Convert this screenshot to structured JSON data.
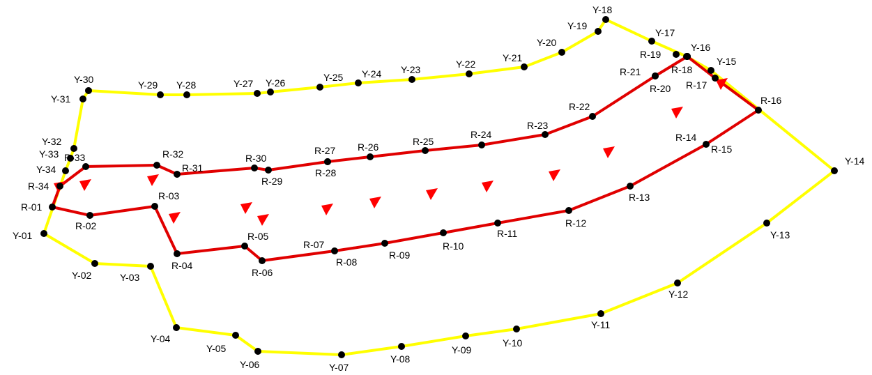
{
  "colors": {
    "outer_route": "#ffff00",
    "inner_route": "#e00000",
    "point": "#000000",
    "arrow": "#ff0000",
    "label": "#000000",
    "background": "#ffffff"
  },
  "yellow_route": {
    "points": [
      {
        "id": "Y-01",
        "label": "Y-01"
      },
      {
        "id": "Y-02",
        "label": "Y-02"
      },
      {
        "id": "Y-03",
        "label": "Y-03"
      },
      {
        "id": "Y-04",
        "label": "Y-04"
      },
      {
        "id": "Y-05",
        "label": "Y-05"
      },
      {
        "id": "Y-06",
        "label": "Y-06"
      },
      {
        "id": "Y-07",
        "label": "Y-07"
      },
      {
        "id": "Y-08",
        "label": "Y-08"
      },
      {
        "id": "Y-09",
        "label": "Y-09"
      },
      {
        "id": "Y-10",
        "label": "Y-10"
      },
      {
        "id": "Y-11",
        "label": "Y-11"
      },
      {
        "id": "Y-12",
        "label": "Y-12"
      },
      {
        "id": "Y-13",
        "label": "Y-13"
      },
      {
        "id": "Y-14",
        "label": "Y-14"
      },
      {
        "id": "Y-15",
        "label": "Y-15"
      },
      {
        "id": "Y-16",
        "label": "Y-16"
      },
      {
        "id": "Y-17",
        "label": "Y-17"
      },
      {
        "id": "Y-18",
        "label": "Y-18"
      },
      {
        "id": "Y-19",
        "label": "Y-19"
      },
      {
        "id": "Y-20",
        "label": "Y-20"
      },
      {
        "id": "Y-21",
        "label": "Y-21"
      },
      {
        "id": "Y-22",
        "label": "Y-22"
      },
      {
        "id": "Y-23",
        "label": "Y-23"
      },
      {
        "id": "Y-24",
        "label": "Y-24"
      },
      {
        "id": "Y-25",
        "label": "Y-25"
      },
      {
        "id": "Y-26",
        "label": "Y-26"
      },
      {
        "id": "Y-27",
        "label": "Y-27"
      },
      {
        "id": "Y-28",
        "label": "Y-28"
      },
      {
        "id": "Y-29",
        "label": "Y-29"
      },
      {
        "id": "Y-30",
        "label": "Y-30"
      },
      {
        "id": "Y-31",
        "label": "Y-31"
      },
      {
        "id": "Y-32",
        "label": "Y-32"
      },
      {
        "id": "Y-33",
        "label": "Y-33"
      },
      {
        "id": "Y-34",
        "label": "Y-34"
      }
    ]
  },
  "red_route": {
    "points": [
      {
        "id": "R-01",
        "label": "R-01"
      },
      {
        "id": "R-02",
        "label": "R-02"
      },
      {
        "id": "R-03",
        "label": "R-03"
      },
      {
        "id": "R-04",
        "label": "R-04"
      },
      {
        "id": "R-05",
        "label": "R-05"
      },
      {
        "id": "R-06",
        "label": "R-06"
      },
      {
        "id": "R-07",
        "label": "R-07"
      },
      {
        "id": "R-08",
        "label": "R-08"
      },
      {
        "id": "R-09",
        "label": "R-09"
      },
      {
        "id": "R-10",
        "label": "R-10"
      },
      {
        "id": "R-11",
        "label": "R-11"
      },
      {
        "id": "R-12",
        "label": "R-12"
      },
      {
        "id": "R-13",
        "label": "R-13"
      },
      {
        "id": "R-14",
        "label": "R-14"
      },
      {
        "id": "R-15",
        "label": "R-15"
      },
      {
        "id": "R-16",
        "label": "R-16"
      },
      {
        "id": "R-17",
        "label": "R-17"
      },
      {
        "id": "R-18",
        "label": "R-18"
      },
      {
        "id": "R-19",
        "label": "R-19"
      },
      {
        "id": "R-20",
        "label": "R-20"
      },
      {
        "id": "R-21",
        "label": "R-21"
      },
      {
        "id": "R-22",
        "label": "R-22"
      },
      {
        "id": "R-23",
        "label": "R-23"
      },
      {
        "id": "R-24",
        "label": "R-24"
      },
      {
        "id": "R-25",
        "label": "R-25"
      },
      {
        "id": "R-26",
        "label": "R-26"
      },
      {
        "id": "R-27",
        "label": "R-27"
      },
      {
        "id": "R-28",
        "label": "R-28"
      },
      {
        "id": "R-29",
        "label": "R-29"
      },
      {
        "id": "R-30",
        "label": "R-30"
      },
      {
        "id": "R-31",
        "label": "R-31"
      },
      {
        "id": "R-32",
        "label": "R-32"
      },
      {
        "id": "R-33",
        "label": "R-33"
      },
      {
        "id": "R-34",
        "label": "R-34"
      }
    ]
  }
}
